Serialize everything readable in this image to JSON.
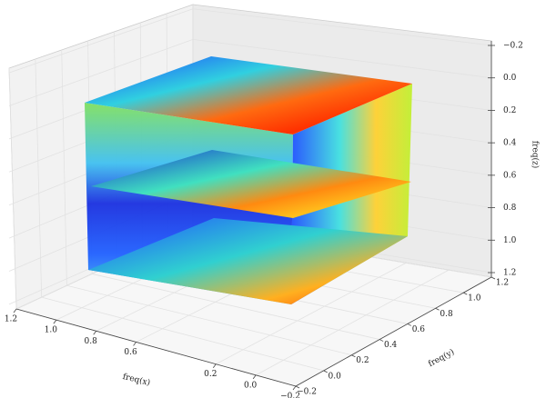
{
  "chart_data": {
    "type": "scatter3d",
    "x_label": "freq(x)",
    "y_label": "freq(y)",
    "z_label": "freq(z)",
    "xlim": [
      1.2,
      -0.2
    ],
    "xticks": [
      1.2,
      {
        "value": 1,
        "label": "1.0"
      },
      0.8,
      0.6,
      0.2,
      {
        "value": 0,
        "label": "0.0"
      },
      {
        "value": -0.2,
        "label": "−0.2"
      }
    ],
    "ylim": [
      -0.2,
      1.2
    ],
    "yticks": [
      {
        "value": -0.2,
        "label": "−0.2"
      },
      {
        "value": 0,
        "label": "0.0"
      },
      0.2,
      0.4,
      0.6,
      0.8,
      {
        "value": 1,
        "label": "1.0"
      },
      1.2
    ],
    "zlim": [
      1.2,
      -0.2
    ],
    "zticks": [
      {
        "value": -0.2,
        "label": "−0.2"
      },
      {
        "value": 0,
        "label": "0.0"
      },
      0.2,
      0.4,
      0.6,
      0.8,
      {
        "value": 1,
        "label": "1.0"
      },
      1.2
    ],
    "grid": true
  }
}
